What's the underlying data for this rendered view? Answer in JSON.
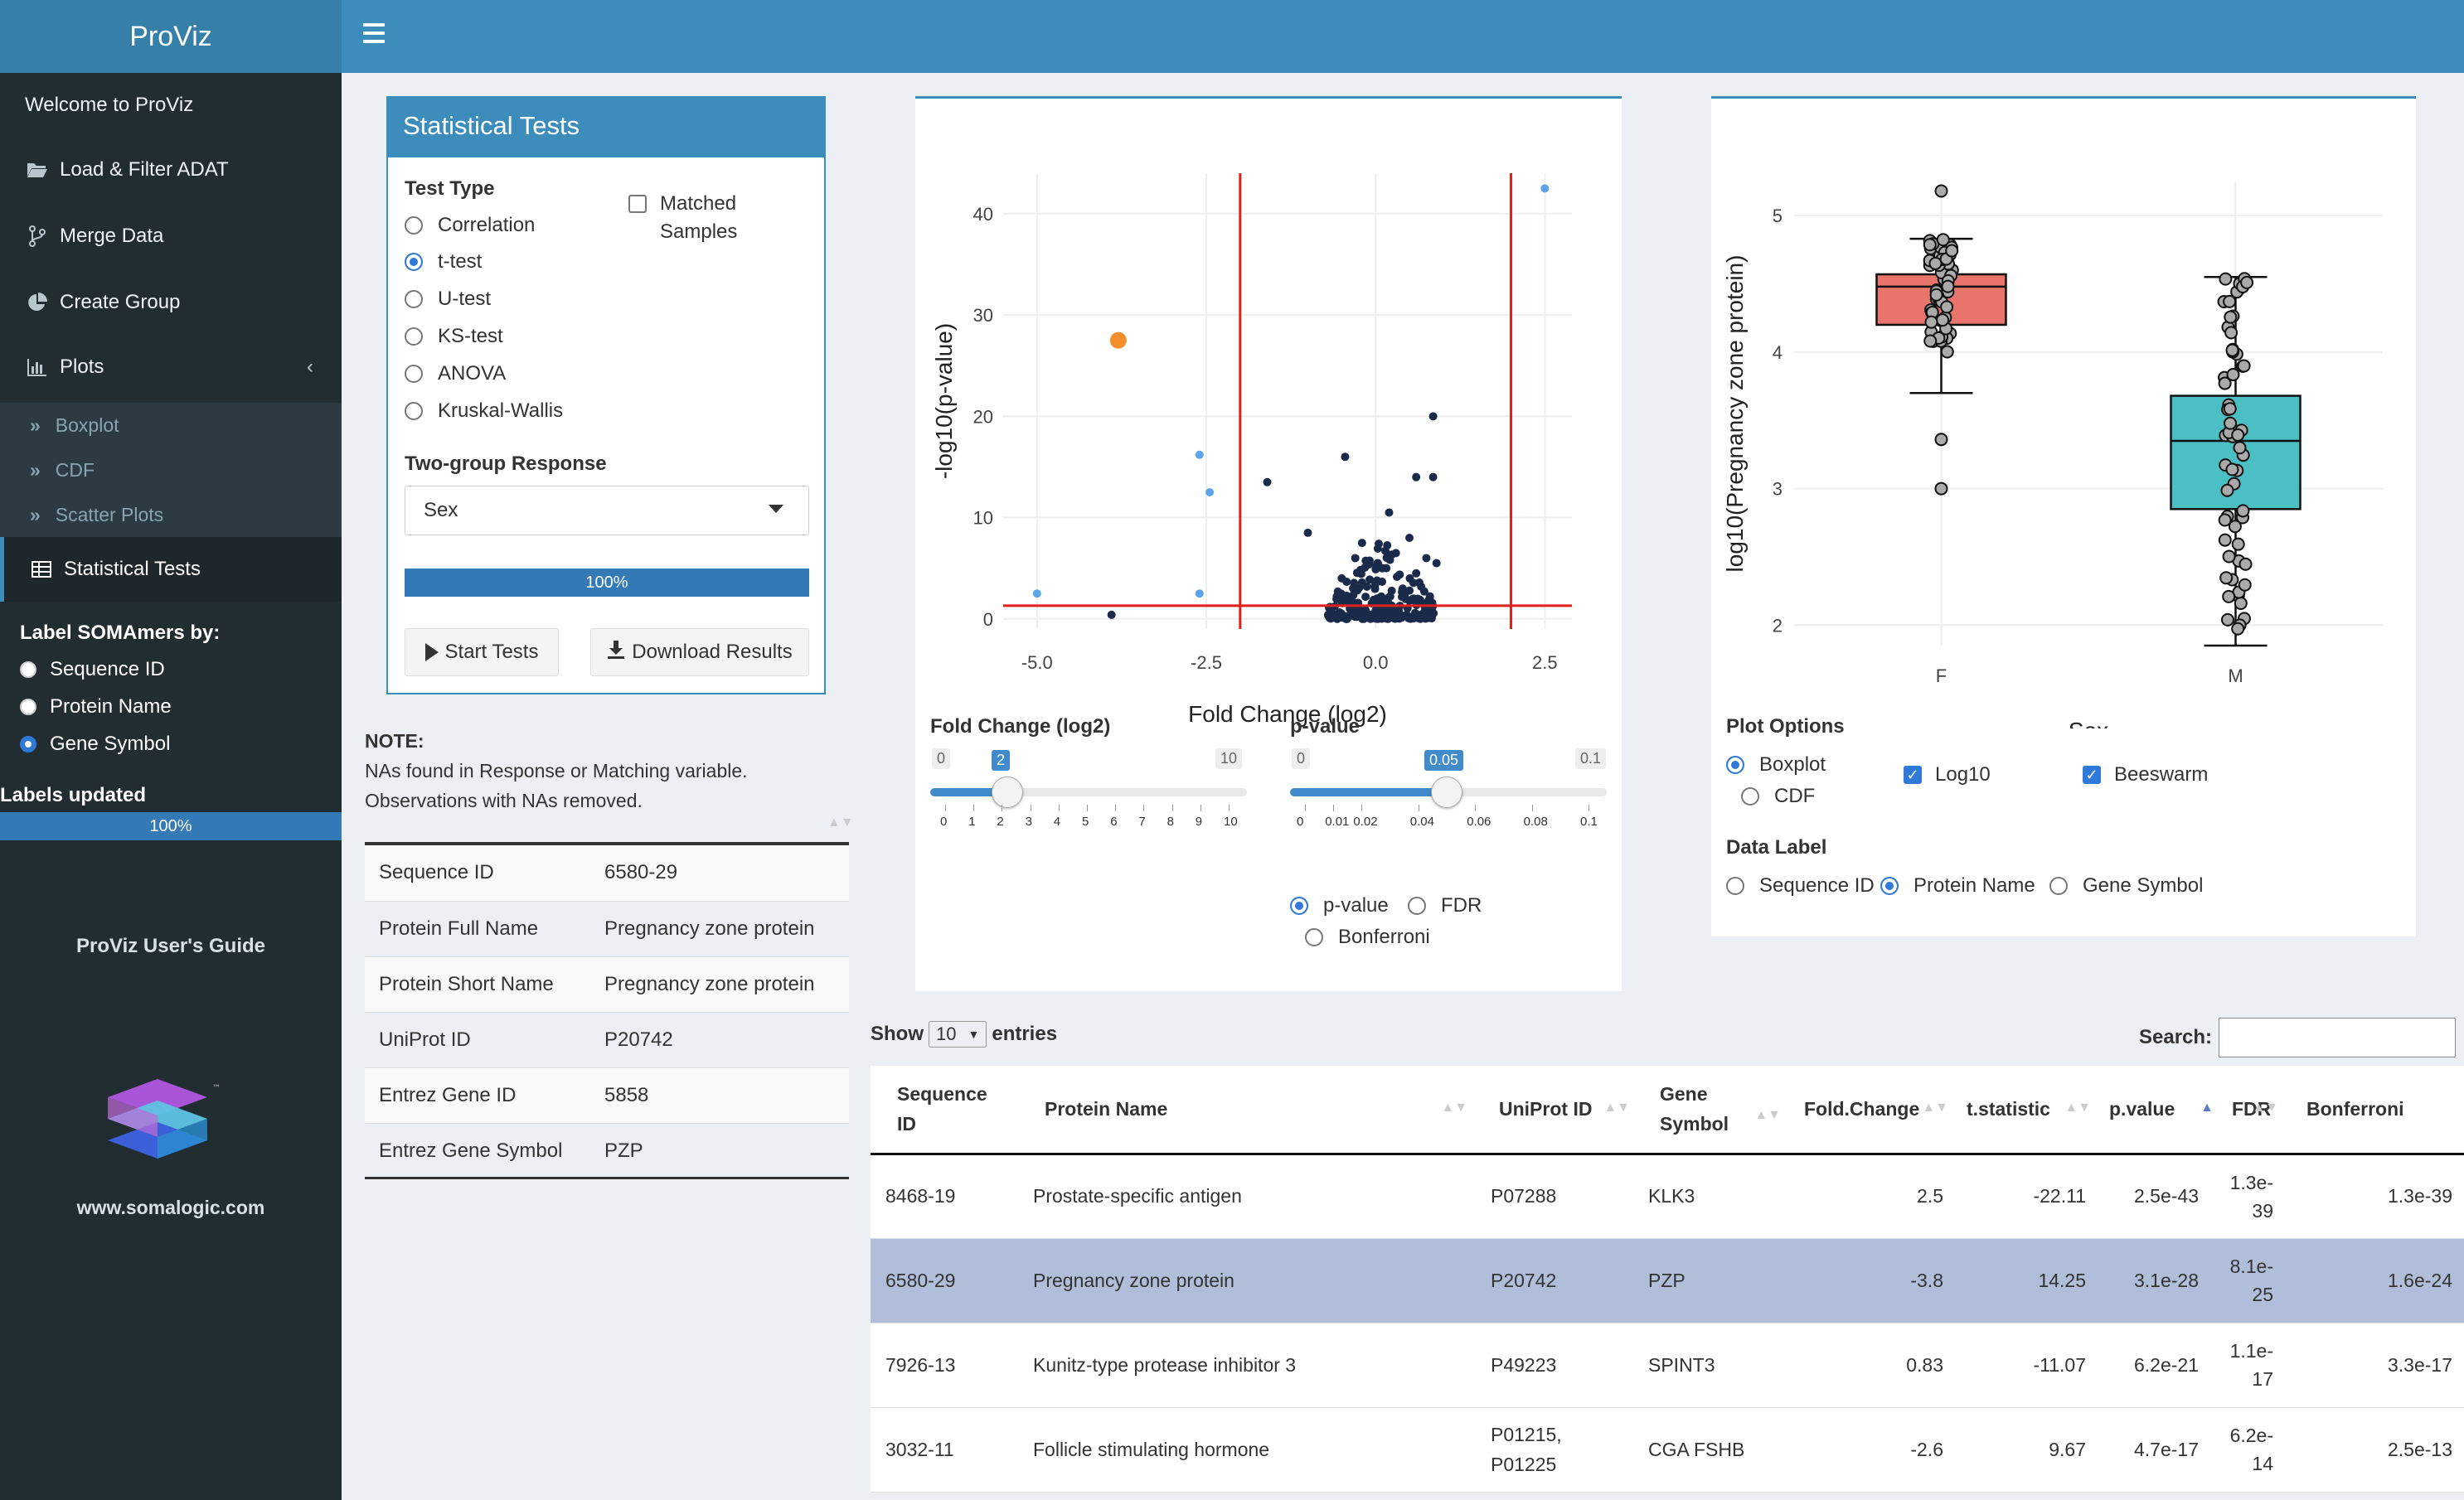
{
  "app": {
    "title": "ProViz"
  },
  "sidebar": {
    "items": [
      {
        "label": "Welcome to ProViz"
      },
      {
        "label": "Load & Filter ADAT"
      },
      {
        "label": "Merge Data"
      },
      {
        "label": "Create Group"
      },
      {
        "label": "Plots"
      }
    ],
    "plot_subitems": [
      "Boxplot",
      "CDF",
      "Scatter Plots"
    ],
    "active_item": "Statistical Tests",
    "label_heading": "Label SOMAmers by:",
    "label_options": [
      "Sequence ID",
      "Protein Name",
      "Gene Symbol"
    ],
    "label_selected": "Gene Symbol",
    "labels_updated": "Labels updated",
    "labels_progress": "100%",
    "guide_link": "ProViz User's Guide",
    "logo_url_text": "www.somalogic.com",
    "logo_tm": "™"
  },
  "stats_box": {
    "title": "Statistical Tests",
    "test_type_label": "Test Type",
    "test_options": [
      "Correlation",
      "t-test",
      "U-test",
      "KS-test",
      "ANOVA",
      "Kruskal-Wallis"
    ],
    "test_selected": "t-test",
    "matched_label_1": "Matched",
    "matched_label_2": "Samples",
    "two_group_label": "Two-group Response",
    "response_value": "Sex",
    "progress_label": "100%",
    "progress_fraction": 1.0,
    "start_button": "Start Tests",
    "download_button": "Download Results"
  },
  "note": {
    "heading": "NOTE:",
    "line1": "NAs found in Response or Matching variable.",
    "line2": "Observations with NAs removed."
  },
  "protein_info": [
    {
      "key": "Sequence ID",
      "value": "6580-29"
    },
    {
      "key": "Protein Full Name",
      "value": "Pregnancy zone protein"
    },
    {
      "key": "Protein Short Name",
      "value": "Pregnancy zone protein"
    },
    {
      "key": "UniProt ID",
      "value": "P20742"
    },
    {
      "key": "Entrez Gene ID",
      "value": "5858"
    },
    {
      "key": "Entrez Gene Symbol",
      "value": "PZP"
    }
  ],
  "volcano": {
    "fc_slider_label": "Fold Change (log2)",
    "fc_min": "0",
    "fc_max": "10",
    "fc_value": "2",
    "fc_ticks": [
      "0",
      "1",
      "2",
      "3",
      "4",
      "5",
      "6",
      "7",
      "8",
      "9",
      "10"
    ],
    "pv_slider_label": "p-value",
    "pv_min": "0",
    "pv_max": "0.1",
    "pv_value": "0.05",
    "pv_ticks": [
      "0",
      "0.01",
      "0.02",
      "0.04",
      "0.06",
      "0.08",
      "0.1"
    ],
    "adjust_options": [
      "p-value",
      "FDR",
      "Bonferroni"
    ],
    "adjust_selected": "p-value"
  },
  "boxplot_opts": {
    "heading": "Plot Options",
    "plot_types": [
      "Boxplot",
      "CDF"
    ],
    "plot_selected": "Boxplot",
    "log10_label": "Log10",
    "beeswarm_label": "Beeswarm",
    "data_label_heading": "Data Label",
    "data_label_options": [
      "Sequence ID",
      "Protein Name",
      "Gene Symbol"
    ],
    "data_label_selected": "Protein Name"
  },
  "chart_data": [
    {
      "type": "scatter",
      "xlabel": "Fold Change (log2)",
      "ylabel": "-log10(p-value)",
      "xlim": [
        -5.5,
        2.9
      ],
      "ylim": [
        -1,
        44
      ],
      "x_ticks": [
        "-5.0",
        "-2.5",
        "0.0",
        "2.5"
      ],
      "x_tick_values": [
        -5,
        -2.5,
        0,
        2.5
      ],
      "y_ticks": [
        "0",
        "10",
        "20",
        "30",
        "40"
      ],
      "y_tick_values": [
        0,
        10,
        20,
        30,
        40
      ],
      "vlines": [
        -2,
        2
      ],
      "hline": 1.3,
      "highlight": {
        "x": -3.8,
        "y": 27.5,
        "color": "#f28e2b"
      },
      "points_light": [
        [
          -5.0,
          2.5
        ],
        [
          -2.6,
          16.2
        ],
        [
          -2.45,
          12.5
        ],
        [
          -2.6,
          2.5
        ],
        [
          2.5,
          42.5
        ]
      ],
      "points_dark": [
        [
          -3.9,
          0.4
        ],
        [
          -1.6,
          13.5
        ],
        [
          -0.45,
          16.0
        ],
        [
          0.85,
          20.0
        ],
        [
          0.6,
          14.0
        ],
        [
          0.85,
          14.0
        ],
        [
          0.2,
          10.5
        ],
        [
          -1.0,
          8.5
        ],
        [
          0.5,
          8.0
        ],
        [
          -0.2,
          7.5
        ],
        [
          0.3,
          6.5
        ],
        [
          0.75,
          6.0
        ],
        [
          0.9,
          5.5
        ],
        [
          0.6,
          4.5
        ],
        [
          -0.5,
          4.0
        ],
        [
          0.1,
          5.0
        ],
        [
          -0.3,
          6.0
        ],
        [
          0.4,
          3.0
        ],
        [
          0.8,
          2.0
        ],
        [
          0.0,
          3.5
        ]
      ],
      "dark_cluster": {
        "x_min": -0.7,
        "x_max": 0.9,
        "y_max": 8.0,
        "count": 220
      },
      "colors": {
        "light": "#5da5e8",
        "dark": "#1a2a4a",
        "lines": "#e0201b"
      }
    },
    {
      "type": "box",
      "xlabel": "Sex",
      "ylabel": "log10(Pregnancy zone protein)",
      "categories": [
        "F",
        "M"
      ],
      "ylim": [
        1.85,
        5.25
      ],
      "y_ticks": [
        "2",
        "3",
        "4",
        "5"
      ],
      "y_tick_values": [
        2,
        3,
        4,
        5
      ],
      "boxes": [
        {
          "name": "F",
          "min": 3.7,
          "q1": 4.2,
          "median": 4.48,
          "q3": 4.57,
          "max": 4.83,
          "outliers": [
            3.36,
            3.0,
            5.18
          ],
          "color": "#e8756b"
        },
        {
          "name": "M",
          "min": 1.85,
          "q1": 2.85,
          "median": 3.35,
          "q3": 3.68,
          "max": 4.55,
          "outliers": [],
          "color": "#4bbfc4"
        }
      ]
    }
  ],
  "results": {
    "show_label": "Show",
    "entries_value": "10",
    "entries_label": "entries",
    "search_label": "Search:",
    "search_value": "",
    "columns": [
      "Sequence ID",
      "Protein Name",
      "UniProt ID",
      "Gene Symbol",
      "Fold.Change",
      "t.statistic",
      "p.value",
      "FDR",
      "Bonferroni"
    ],
    "rows": [
      {
        "seq": "8468-19",
        "name": "Prostate-specific antigen",
        "uniprot": "P07288",
        "uniprot2": "",
        "gene": "KLK3",
        "fc": "2.5",
        "t": "-22.11",
        "p": "2.5e-43",
        "fdr1": "1.3e-",
        "fdr2": "39",
        "bonf": "1.3e-39"
      },
      {
        "seq": "6580-29",
        "name": "Pregnancy zone protein",
        "uniprot": "P20742",
        "uniprot2": "",
        "gene": "PZP",
        "fc": "-3.8",
        "t": "14.25",
        "p": "3.1e-28",
        "fdr1": "8.1e-",
        "fdr2": "25",
        "bonf": "1.6e-24"
      },
      {
        "seq": "7926-13",
        "name": "Kunitz-type protease inhibitor 3",
        "uniprot": "P49223",
        "uniprot2": "",
        "gene": "SPINT3",
        "fc": "0.83",
        "t": "-11.07",
        "p": "6.2e-21",
        "fdr1": "1.1e-",
        "fdr2": "17",
        "bonf": "3.3e-17"
      },
      {
        "seq": "3032-11",
        "name": "Follicle stimulating hormone",
        "uniprot": "P01215,",
        "uniprot2": "P01225",
        "gene": "CGA FSHB",
        "fc": "-2.6",
        "t": "9.67",
        "p": "4.7e-17",
        "fdr1": "6.2e-",
        "fdr2": "14",
        "bonf": "2.5e-13"
      }
    ]
  }
}
